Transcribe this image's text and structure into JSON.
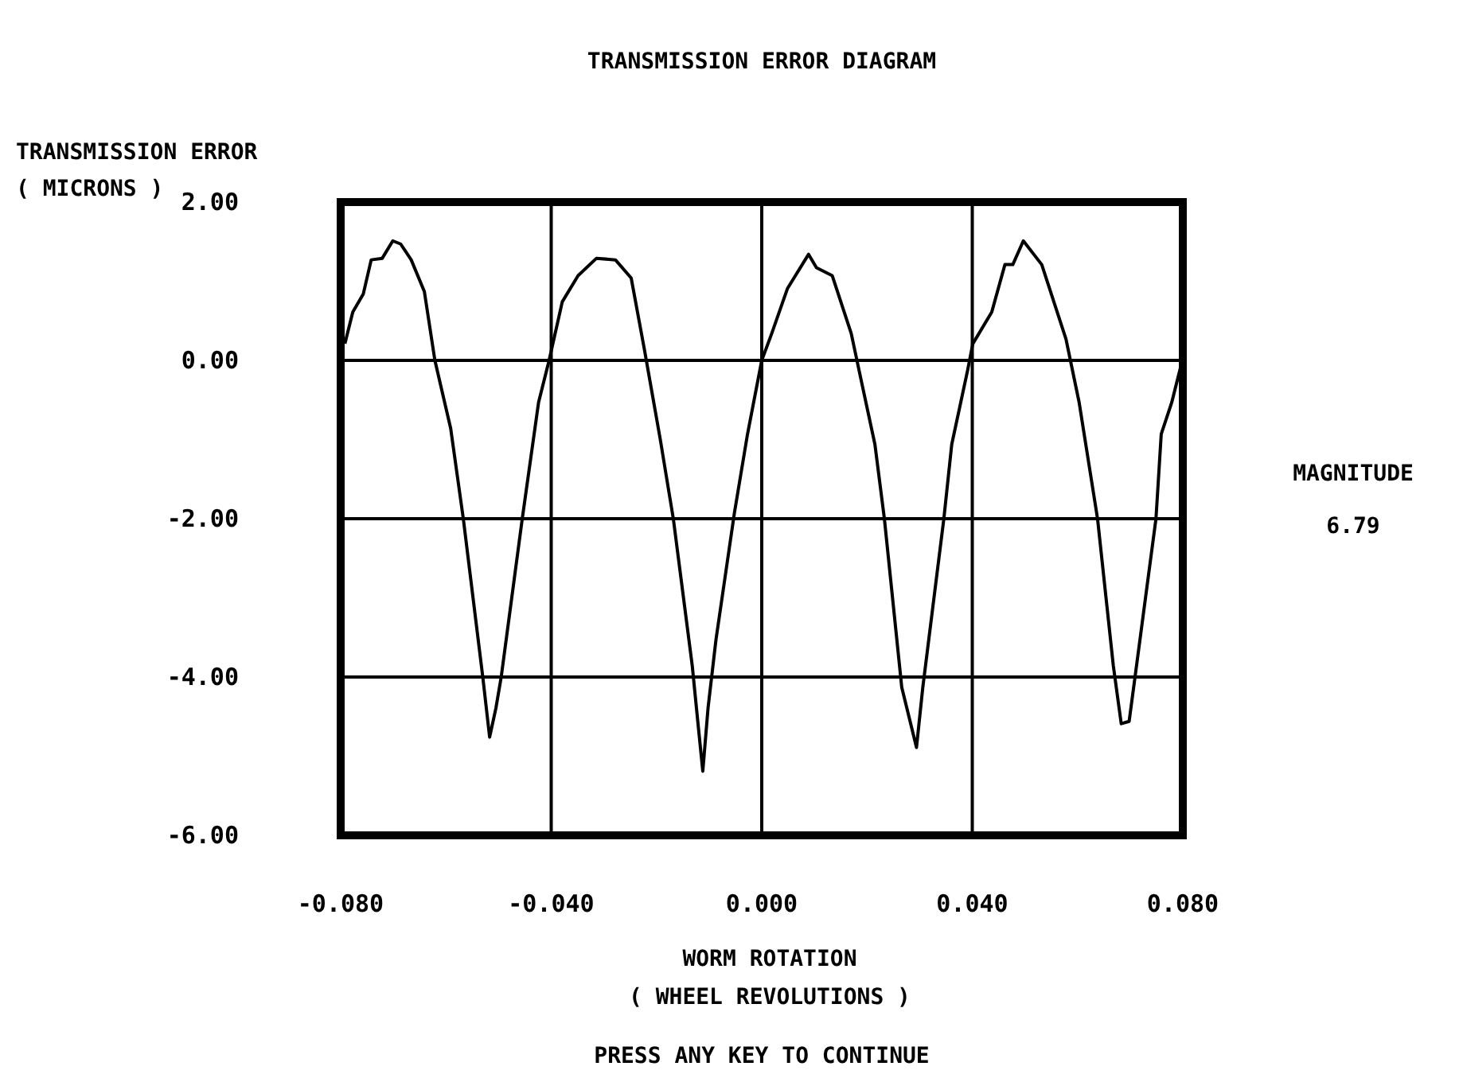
{
  "chart_data": {
    "type": "line",
    "title": "TRANSMISSION ERROR DIAGRAM",
    "ylabel": "TRANSMISSION ERROR\n( MICRONS )",
    "xlabel": "WORM ROTATION\n( WHEEL REVOLUTIONS )",
    "annotations": [
      "MAGNITUDE\n6.79",
      "PRESS ANY KEY TO CONTINUE"
    ],
    "xlim": [
      -0.08,
      0.08
    ],
    "ylim": [
      -6,
      2
    ],
    "xticks": [
      {
        "value": -0.08,
        "label": "-0.080"
      },
      {
        "value": -0.04,
        "label": "-0.040"
      },
      {
        "value": 0,
        "label": "0.000"
      },
      {
        "value": 0.04,
        "label": "0.040"
      },
      {
        "value": 0.08,
        "label": "0.080"
      }
    ],
    "yticks": [
      {
        "value": 2,
        "label": "2.00"
      },
      {
        "value": 0,
        "label": "0.00"
      },
      {
        "value": -2,
        "label": "-2.00"
      },
      {
        "value": -4,
        "label": "-4.00"
      },
      {
        "value": -6,
        "label": "-6.00"
      }
    ],
    "grid": true,
    "marker": "none",
    "line_style": "solid",
    "series": [
      {
        "color": "#000000",
        "x": [
          -0.0792,
          -0.0777,
          -0.0757,
          -0.0742,
          -0.0721,
          -0.0701,
          -0.0686,
          -0.0666,
          -0.0641,
          -0.0621,
          -0.0591,
          -0.0567,
          -0.0545,
          -0.053,
          -0.0517,
          -0.0505,
          -0.0495,
          -0.0455,
          -0.0424,
          -0.0404,
          -0.0379,
          -0.0349,
          -0.0314,
          -0.0278,
          -0.0248,
          -0.0223,
          -0.0193,
          -0.0168,
          -0.0132,
          -0.0122,
          -0.0112,
          -0.0102,
          -0.0087,
          -0.0052,
          -0.0027,
          0.0,
          0.0019,
          0.0049,
          0.0089,
          0.0104,
          0.0134,
          0.017,
          0.0185,
          0.0215,
          0.0233,
          0.0266,
          0.0294,
          0.0306,
          0.0346,
          0.0361,
          0.0391,
          0.0401,
          0.0437,
          0.0462,
          0.0477,
          0.0497,
          0.0532,
          0.0578,
          0.0603,
          0.0638,
          0.0668,
          0.0683,
          0.0698,
          0.0708,
          0.0749,
          0.0759,
          0.0779,
          0.0799
        ],
        "values": [
          0.21,
          0.61,
          0.84,
          1.27,
          1.29,
          1.51,
          1.47,
          1.27,
          0.87,
          0.0,
          -0.86,
          -2.0,
          -3.19,
          -4.0,
          -4.76,
          -4.39,
          -4.0,
          -2.0,
          -0.53,
          0.0,
          0.74,
          1.07,
          1.29,
          1.27,
          1.04,
          0.14,
          -0.99,
          -2.0,
          -3.86,
          -4.53,
          -5.19,
          -4.39,
          -3.53,
          -1.93,
          -0.93,
          0.0,
          0.34,
          0.91,
          1.34,
          1.17,
          1.07,
          0.34,
          -0.13,
          -1.06,
          -2.0,
          -4.13,
          -4.89,
          -4.13,
          -2.0,
          -1.06,
          -0.13,
          0.21,
          0.61,
          1.21,
          1.21,
          1.51,
          1.21,
          0.27,
          -0.53,
          -2.0,
          -3.86,
          -4.59,
          -4.56,
          -4.06,
          -2.0,
          -0.93,
          -0.53,
          0.0
        ]
      }
    ]
  }
}
